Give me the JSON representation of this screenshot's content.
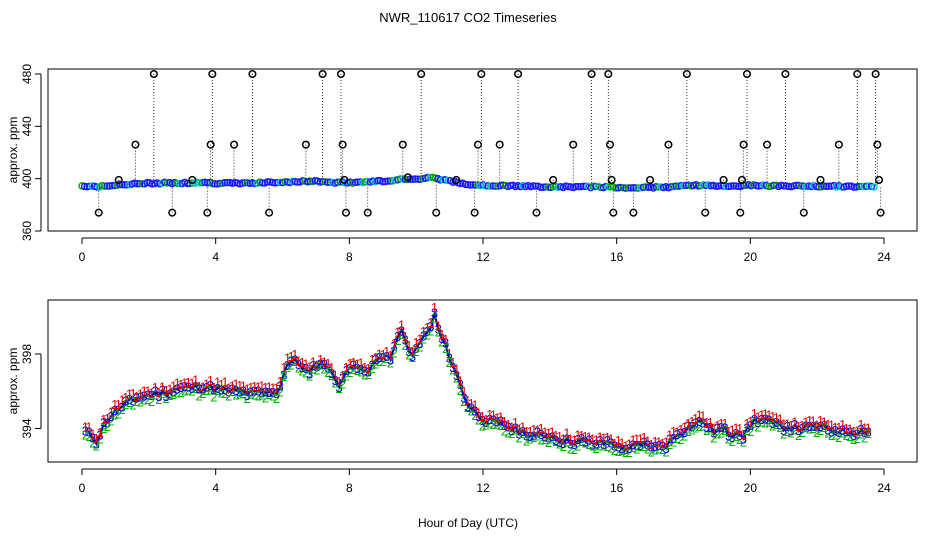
{
  "title": "NWR_110617  CO2 Timeseries",
  "xlabel": "Hour of Day (UTC)",
  "chart_data": [
    {
      "type": "scatter",
      "panel": "top",
      "ylabel": "approx. ppm",
      "xlim": [
        0,
        24
      ],
      "ylim": [
        360,
        480
      ],
      "xticks": [
        "0",
        "4",
        "8",
        "12",
        "16",
        "20",
        "24"
      ],
      "yticks": [
        "360",
        "400",
        "440",
        "480"
      ],
      "baseline": [
        [
          0.0,
          394.5
        ],
        [
          0.5,
          394.0
        ],
        [
          1.0,
          395.0
        ],
        [
          1.5,
          396.0
        ],
        [
          2.0,
          396.5
        ],
        [
          3.0,
          396.8
        ],
        [
          3.8,
          397.0
        ],
        [
          4.0,
          396.5
        ],
        [
          5.0,
          396.5
        ],
        [
          6.0,
          397.5
        ],
        [
          7.0,
          398.0
        ],
        [
          7.6,
          397.0
        ],
        [
          8.0,
          397.0
        ],
        [
          8.6,
          397.8
        ],
        [
          9.2,
          398.5
        ],
        [
          9.6,
          400.0
        ],
        [
          10.0,
          399.5
        ],
        [
          10.5,
          401.0
        ],
        [
          11.0,
          398.0
        ],
        [
          11.5,
          396.0
        ],
        [
          12.0,
          395.0
        ],
        [
          13.0,
          394.3
        ],
        [
          14.0,
          393.8
        ],
        [
          15.0,
          393.7
        ],
        [
          15.8,
          393.6
        ],
        [
          16.0,
          393.2
        ],
        [
          17.0,
          393.3
        ],
        [
          17.6,
          393.5
        ],
        [
          18.0,
          394.5
        ],
        [
          18.5,
          395.0
        ],
        [
          19.0,
          394.7
        ],
        [
          19.5,
          394.3
        ],
        [
          20.0,
          395.0
        ],
        [
          20.5,
          394.6
        ],
        [
          21.0,
          394.5
        ],
        [
          22.0,
          394.3
        ],
        [
          23.0,
          394.0
        ],
        [
          23.7,
          394.1
        ]
      ],
      "outliers": [
        [
          0.5,
          374
        ],
        [
          1.1,
          399
        ],
        [
          1.6,
          426
        ],
        [
          2.15,
          480
        ],
        [
          2.7,
          374
        ],
        [
          3.3,
          399
        ],
        [
          3.75,
          374
        ],
        [
          3.85,
          426
        ],
        [
          3.9,
          480
        ],
        [
          4.55,
          426
        ],
        [
          5.1,
          480
        ],
        [
          5.6,
          374
        ],
        [
          6.7,
          426
        ],
        [
          7.2,
          480
        ],
        [
          7.75,
          480
        ],
        [
          7.8,
          426
        ],
        [
          7.85,
          399
        ],
        [
          7.9,
          374
        ],
        [
          8.55,
          374
        ],
        [
          9.6,
          426
        ],
        [
          9.75,
          401
        ],
        [
          10.15,
          480
        ],
        [
          10.6,
          374
        ],
        [
          11.2,
          399
        ],
        [
          11.75,
          374
        ],
        [
          11.85,
          426
        ],
        [
          11.95,
          480
        ],
        [
          12.5,
          426
        ],
        [
          13.05,
          480
        ],
        [
          13.6,
          374
        ],
        [
          14.1,
          399
        ],
        [
          14.7,
          426
        ],
        [
          15.25,
          480
        ],
        [
          15.75,
          480
        ],
        [
          15.8,
          426
        ],
        [
          15.85,
          399
        ],
        [
          15.9,
          374
        ],
        [
          16.5,
          374
        ],
        [
          17.0,
          399
        ],
        [
          17.55,
          426
        ],
        [
          18.1,
          480
        ],
        [
          18.65,
          374
        ],
        [
          19.2,
          399
        ],
        [
          19.7,
          374
        ],
        [
          19.75,
          399
        ],
        [
          19.8,
          426
        ],
        [
          19.9,
          480
        ],
        [
          20.5,
          426
        ],
        [
          21.05,
          480
        ],
        [
          21.6,
          374
        ],
        [
          22.1,
          399
        ],
        [
          22.65,
          426
        ],
        [
          23.2,
          480
        ],
        [
          23.75,
          480
        ],
        [
          23.8,
          426
        ],
        [
          23.85,
          399
        ],
        [
          23.9,
          374
        ]
      ]
    },
    {
      "type": "line",
      "panel": "bottom",
      "ylabel": "approx. ppm",
      "xlim": [
        0,
        24
      ],
      "ylim": [
        392.2,
        400.9
      ],
      "xticks": [
        "0",
        "4",
        "8",
        "12",
        "16",
        "20",
        "24"
      ],
      "yticks": [
        "394",
        "398"
      ],
      "series_labels": [
        "1",
        "2",
        "3"
      ],
      "series_colors": [
        "#e00000",
        "#00b000",
        "#0000e0"
      ],
      "line_color": "#00008b",
      "series_offsets": [
        0.25,
        -0.2,
        0.0
      ],
      "baseline": [
        [
          0.1,
          393.8
        ],
        [
          0.25,
          393.6
        ],
        [
          0.45,
          393.3
        ],
        [
          0.6,
          394.0
        ],
        [
          0.8,
          394.6
        ],
        [
          1.0,
          394.9
        ],
        [
          1.3,
          395.3
        ],
        [
          1.6,
          395.6
        ],
        [
          2.0,
          395.8
        ],
        [
          2.4,
          395.9
        ],
        [
          2.8,
          396.1
        ],
        [
          3.2,
          396.2
        ],
        [
          3.8,
          396.2
        ],
        [
          4.0,
          396.1
        ],
        [
          4.5,
          396.0
        ],
        [
          5.0,
          395.9
        ],
        [
          5.5,
          395.9
        ],
        [
          5.9,
          396.0
        ],
        [
          6.1,
          397.5
        ],
        [
          6.4,
          397.6
        ],
        [
          6.6,
          397.3
        ],
        [
          6.8,
          396.9
        ],
        [
          7.0,
          397.4
        ],
        [
          7.3,
          397.5
        ],
        [
          7.5,
          396.8
        ],
        [
          7.7,
          396.4
        ],
        [
          7.9,
          396.9
        ],
        [
          8.1,
          397.5
        ],
        [
          8.3,
          397.4
        ],
        [
          8.5,
          396.8
        ],
        [
          8.7,
          397.4
        ],
        [
          8.9,
          397.8
        ],
        [
          9.1,
          398.0
        ],
        [
          9.2,
          397.6
        ],
        [
          9.35,
          398.2
        ],
        [
          9.5,
          399.5
        ],
        [
          9.65,
          398.7
        ],
        [
          9.8,
          398.0
        ],
        [
          10.0,
          398.2
        ],
        [
          10.2,
          398.9
        ],
        [
          10.4,
          399.2
        ],
        [
          10.55,
          400.1
        ],
        [
          10.7,
          399.0
        ],
        [
          10.85,
          398.5
        ],
        [
          11.1,
          397.4
        ],
        [
          11.3,
          396.4
        ],
        [
          11.5,
          395.4
        ],
        [
          11.8,
          394.8
        ],
        [
          12.0,
          394.5
        ],
        [
          12.5,
          394.2
        ],
        [
          13.0,
          393.9
        ],
        [
          13.5,
          393.6
        ],
        [
          14.0,
          393.6
        ],
        [
          14.5,
          393.3
        ],
        [
          15.0,
          393.3
        ],
        [
          15.5,
          393.2
        ],
        [
          15.9,
          393.3
        ],
        [
          16.0,
          392.9
        ],
        [
          16.4,
          393.0
        ],
        [
          16.8,
          393.1
        ],
        [
          17.2,
          393.0
        ],
        [
          17.5,
          393.1
        ],
        [
          17.8,
          393.7
        ],
        [
          18.0,
          393.9
        ],
        [
          18.3,
          394.2
        ],
        [
          18.6,
          394.4
        ],
        [
          18.9,
          393.8
        ],
        [
          19.2,
          394.0
        ],
        [
          19.4,
          393.6
        ],
        [
          19.6,
          393.9
        ],
        [
          19.8,
          393.6
        ],
        [
          20.1,
          394.4
        ],
        [
          20.4,
          394.5
        ],
        [
          20.7,
          394.2
        ],
        [
          21.0,
          394.1
        ],
        [
          21.5,
          394.0
        ],
        [
          22.0,
          394.1
        ],
        [
          22.5,
          393.9
        ],
        [
          23.0,
          393.8
        ],
        [
          23.6,
          393.9
        ]
      ]
    }
  ]
}
